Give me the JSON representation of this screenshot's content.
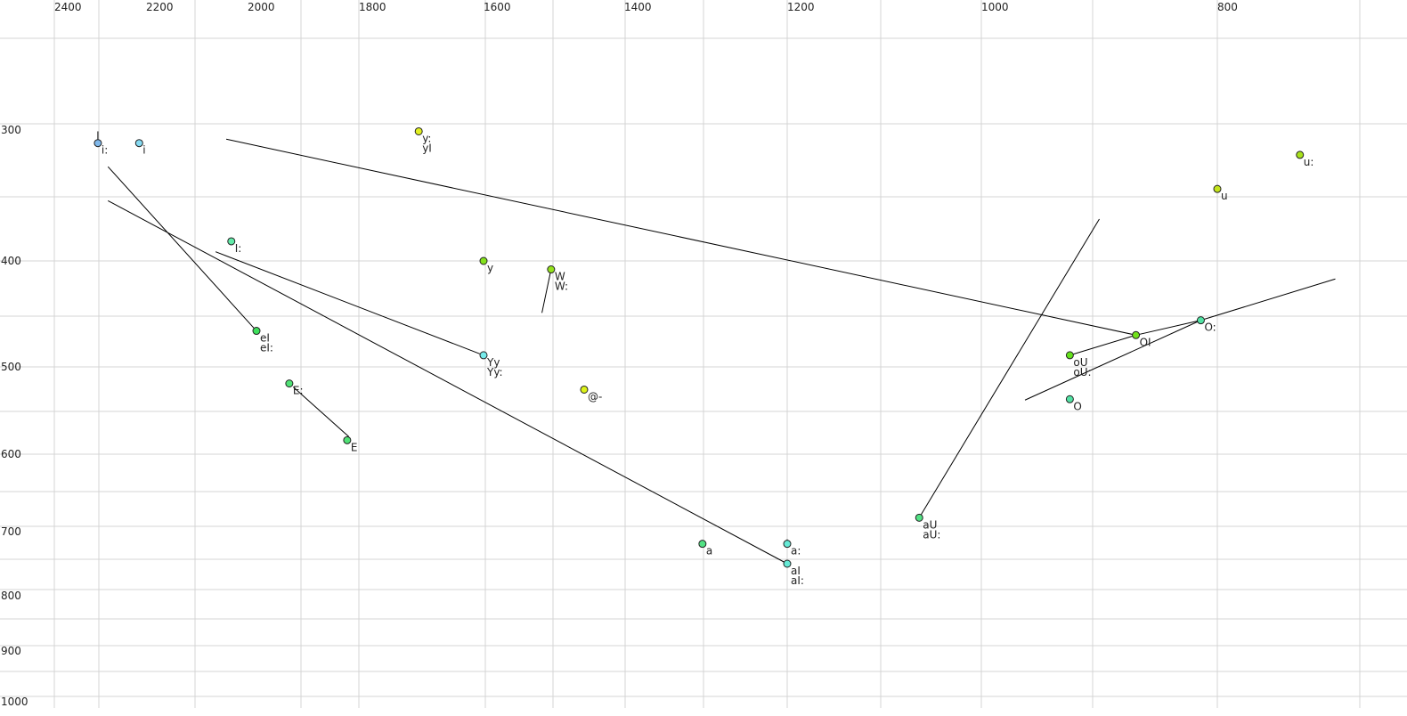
{
  "chart_data": {
    "type": "scatter",
    "title": "",
    "xlabel": "",
    "ylabel": "",
    "x_axis_reversed": true,
    "y_axis_reversed": true,
    "grid": true,
    "x_ticks": [
      2400,
      2200,
      2000,
      1800,
      1600,
      1400,
      1200,
      1000,
      800
    ],
    "y_ticks": [
      300,
      400,
      500,
      600,
      700,
      800,
      900,
      1000
    ],
    "points": [
      {
        "labels": [
          "i:"
        ],
        "F2": 2305,
        "F1": 310,
        "color": "#80b8ea"
      },
      {
        "labels": [
          "i"
        ],
        "F2": 2215,
        "F1": 310,
        "color": "#86daf2"
      },
      {
        "labels": [
          "y:",
          "yI"
        ],
        "F2": 1704,
        "F1": 301,
        "color": "#e2f020"
      },
      {
        "labels": [
          "I:"
        ],
        "F2": 2032,
        "F1": 385,
        "color": "#62eaa8"
      },
      {
        "labels": [
          "y"
        ],
        "F2": 1600,
        "F1": 400,
        "color": "#84e21c"
      },
      {
        "labels": [
          "W",
          "W:"
        ],
        "F2": 1504,
        "F1": 408,
        "color": "#94e21c"
      },
      {
        "labels": [
          "eI",
          "eI:"
        ],
        "F2": 1984,
        "F1": 466,
        "color": "#3ee05c"
      },
      {
        "labels": [
          "Yy",
          "Yy:"
        ],
        "F2": 1600,
        "F1": 489,
        "color": "#76eaea"
      },
      {
        "labels": [
          "E:"
        ],
        "F2": 1925,
        "F1": 519,
        "color": "#50e276"
      },
      {
        "labels": [
          "E"
        ],
        "F2": 1821,
        "F1": 584,
        "color": "#50e276"
      },
      {
        "labels": [
          "@-"
        ],
        "F2": 1457,
        "F1": 526,
        "color": "#dcf21a"
      },
      {
        "labels": [
          "a"
        ],
        "F2": 1304,
        "F1": 719,
        "color": "#52e284"
      },
      {
        "labels": [
          "a:"
        ],
        "F2": 1200,
        "F1": 719,
        "color": "#66ead6"
      },
      {
        "labels": [
          "aI",
          "aI:"
        ],
        "F2": 1200,
        "F1": 750,
        "color": "#66ead6"
      },
      {
        "labels": [
          "aU",
          "aU:"
        ],
        "F2": 1064,
        "F1": 682,
        "color": "#52e284"
      },
      {
        "labels": [
          "oU",
          "oU:"
        ],
        "F2": 925,
        "F1": 489,
        "color": "#64e21c"
      },
      {
        "labels": [
          "O"
        ],
        "F2": 925,
        "F1": 537,
        "color": "#52e2a4"
      },
      {
        "labels": [
          "OI"
        ],
        "F2": 869,
        "F1": 470,
        "color": "#72e21c"
      },
      {
        "labels": [
          "O:"
        ],
        "F2": 814,
        "F1": 456,
        "color": "#52e2a4"
      },
      {
        "labels": [
          "u"
        ],
        "F2": 800,
        "F1": 345,
        "color": "#c4e41c"
      },
      {
        "labels": [
          "u:"
        ],
        "F2": 730,
        "F1": 319,
        "color": "#a8e21c"
      }
    ],
    "trajectories": [
      [
        [
          2042,
          307
        ],
        [
          869,
          470
        ]
      ],
      [
        [
          2283,
          328
        ],
        [
          1984,
          466
        ]
      ],
      [
        [
          2283,
          354
        ],
        [
          1200,
          750
        ]
      ],
      [
        [
          2063,
          393
        ],
        [
          1600,
          489
        ]
      ],
      [
        [
          1918,
          523
        ],
        [
          1818,
          580
        ]
      ],
      [
        [
          1504,
          408
        ],
        [
          1517,
          449
        ]
      ],
      [
        [
          1064,
          682
        ],
        [
          900,
          368
        ]
      ],
      [
        [
          925,
          489
        ],
        [
          869,
          470
        ],
        [
          814,
          456
        ],
        [
          700,
          417
        ]
      ],
      [
        [
          963,
          538
        ],
        [
          814,
          456
        ]
      ],
      [
        [
          2305,
          301
        ],
        [
          2305,
          310
        ]
      ],
      [
        [
          1200,
          712
        ],
        [
          1200,
          719
        ]
      ]
    ]
  }
}
